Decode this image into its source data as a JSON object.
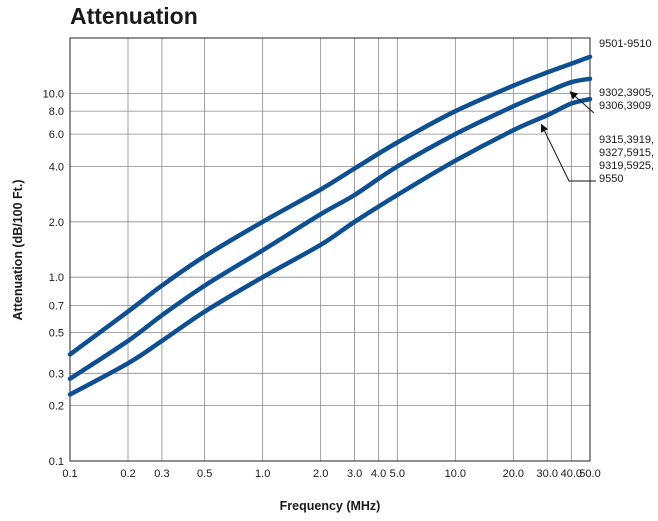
{
  "chart_data": {
    "type": "line",
    "title": "Attenuation",
    "xlabel": "Frequency (MHz)",
    "ylabel": "Attenuation (dB/100 Ft.)",
    "x_scale": "log",
    "y_scale": "log",
    "xlim": [
      0.1,
      50
    ],
    "ylim": [
      0.1,
      20
    ],
    "grid": true,
    "x_ticks": [
      0.1,
      0.2,
      0.3,
      0.5,
      1,
      2,
      3,
      4,
      5,
      10,
      20,
      30,
      40,
      50
    ],
    "x_tick_labels": [
      "0.1",
      "0.2",
      "0.3",
      "0.5",
      "1.0",
      "2.0",
      "3.0",
      "4.0",
      "5.0",
      "10.0",
      "20.0",
      "30.0",
      "40.0",
      "50.0"
    ],
    "y_ticks": [
      0.1,
      0.2,
      0.3,
      0.5,
      0.7,
      1,
      2,
      4,
      6,
      8,
      10
    ],
    "y_tick_labels": [
      "0.1",
      "0.2",
      "0.3",
      "0.5",
      "0.7",
      "1.0",
      "2.0",
      "4.0",
      "6.0",
      "8.0",
      "10.0"
    ],
    "line_color": "#0d4f91",
    "series": [
      {
        "labels": [
          "9501-9510"
        ],
        "x": [
          0.1,
          0.2,
          0.3,
          0.5,
          1,
          2,
          3,
          5,
          10,
          20,
          30,
          40,
          50
        ],
        "values": [
          0.38,
          0.65,
          0.9,
          1.3,
          2.0,
          3.0,
          3.9,
          5.4,
          8.0,
          11.0,
          13.0,
          14.5,
          15.8
        ]
      },
      {
        "labels": [
          "9302,3905,",
          "9306,3909"
        ],
        "x": [
          0.1,
          0.2,
          0.3,
          0.5,
          1,
          2,
          3,
          5,
          10,
          20,
          30,
          40,
          50
        ],
        "values": [
          0.28,
          0.45,
          0.62,
          0.9,
          1.4,
          2.2,
          2.8,
          4.0,
          6.0,
          8.5,
          10.2,
          11.5,
          12.0
        ]
      },
      {
        "labels": [
          "9315,3919,",
          "9327,5915,",
          "9319,5925,",
          "9550"
        ],
        "x": [
          0.1,
          0.2,
          0.3,
          0.5,
          1,
          2,
          3,
          5,
          10,
          20,
          30,
          40,
          50
        ],
        "values": [
          0.23,
          0.34,
          0.45,
          0.65,
          1.0,
          1.5,
          2.0,
          2.8,
          4.3,
          6.3,
          7.6,
          8.8,
          9.3
        ]
      }
    ]
  }
}
